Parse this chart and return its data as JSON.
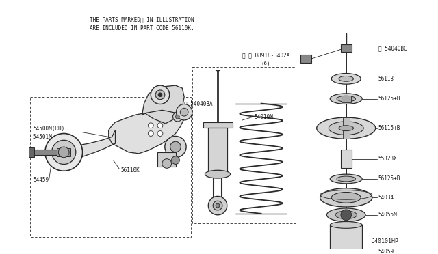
{
  "bg": "#ffffff",
  "lc": "#2a2a2a",
  "tc": "#1a1a1a",
  "fig_w": 6.4,
  "fig_h": 3.72,
  "dpi": 100,
  "notice1": "THE PARTS MARKED※ IN ILLUSTRATION",
  "notice2": "ARE INCLUDED IN PART CODE 56110K.",
  "watermark": "J40101HP"
}
